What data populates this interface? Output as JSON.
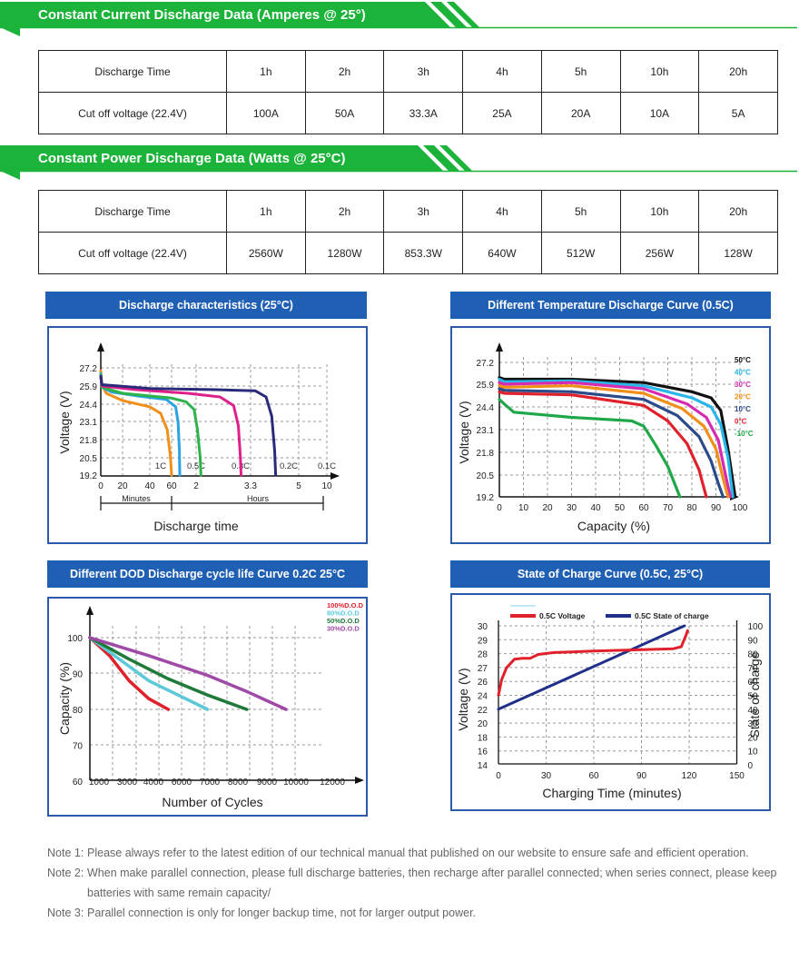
{
  "current_section": {
    "title": "Constant Current Discharge Data (Amperes @ 25°)",
    "header_label": "Discharge Time",
    "times": [
      "1h",
      "2h",
      "3h",
      "4h",
      "5h",
      "10h",
      "20h"
    ],
    "row_label": "Cut off voltage (22.4V)",
    "values": [
      "100A",
      "50A",
      "33.3A",
      "25A",
      "20A",
      "10A",
      "5A"
    ]
  },
  "power_section": {
    "title": "Constant Power Discharge Data (Watts @ 25°C)",
    "header_label": "Discharge Time",
    "times": [
      "1h",
      "2h",
      "3h",
      "4h",
      "5h",
      "10h",
      "20h"
    ],
    "row_label": "Cut off voltage (22.4V)",
    "values": [
      "2560W",
      "1280W",
      "853.3W",
      "640W",
      "512W",
      "256W",
      "128W"
    ]
  },
  "colors": {
    "green_bar": "#1cb33a",
    "blue_header": "#1f5fb4",
    "frame_border": "#2a5aa8",
    "c1": "#f0901a",
    "c05": "#2aa3e0",
    "c03": "#2db34a",
    "c02": "#e0208a",
    "c01": "#2a2a7a",
    "t50": "#111111",
    "t40": "#29b6e8",
    "t30": "#d62ab0",
    "t20": "#f0901a",
    "t10": "#2a4a8a",
    "t0": "#e0202a",
    "tm10": "#1ea84a",
    "d100": "#e0202a",
    "d80": "#5cc8d8",
    "d50": "#1f7a3a",
    "d30": "#a04aa8",
    "voltage_line": "#e0202a",
    "soc_line": "#1f2f8a"
  },
  "chart_data": [
    {
      "type": "line",
      "title": "Discharge characteristics (25°C)",
      "xlabel": "Discharge time",
      "ylabel": "Voltage (V)",
      "yticks": [
        "27.2",
        "25.9",
        "24.4",
        "23.1",
        "21.8",
        "20.5",
        "19.2"
      ],
      "xtick_minutes": [
        "0",
        "20",
        "40",
        "60"
      ],
      "xtick_hours": [
        "2",
        "3.3",
        "5",
        "10"
      ],
      "xrange_minutes_label": "Minutes",
      "xrange_hours_label": "Hours",
      "series": [
        {
          "name": "1C",
          "points": [
            [
              0,
              27.0
            ],
            [
              1,
              26.0
            ],
            [
              5,
              25.3
            ],
            [
              20,
              24.7
            ],
            [
              40,
              24.2
            ],
            [
              50,
              23.7
            ],
            [
              56,
              22.5
            ],
            [
              59,
              20.5
            ],
            [
              60,
              19.2
            ]
          ]
        },
        {
          "name": "0.5C",
          "points": [
            [
              0,
              26.8
            ],
            [
              1,
              25.8
            ],
            [
              10,
              25.4
            ],
            [
              30,
              25.1
            ],
            [
              55,
              24.8
            ],
            [
              70,
              24.2
            ],
            [
              76,
              23.0
            ],
            [
              79,
              21.0
            ],
            [
              80,
              19.2
            ]
          ]
        },
        {
          "name": "0.3C",
          "points": [
            [
              0,
              26.7
            ],
            [
              1,
              25.8
            ],
            [
              20,
              25.3
            ],
            [
              60,
              24.9
            ],
            [
              95,
              24.6
            ],
            [
              115,
              24.0
            ],
            [
              122,
              22.5
            ],
            [
              126,
              20.5
            ],
            [
              127,
              19.2
            ]
          ]
        },
        {
          "name": "0.2C",
          "points": [
            [
              0,
              26.6
            ],
            [
              1,
              25.9
            ],
            [
              30,
              25.6
            ],
            [
              100,
              25.3
            ],
            [
              155,
              25.0
            ],
            [
              175,
              24.3
            ],
            [
              182,
              22.8
            ],
            [
              185,
              20.5
            ],
            [
              186,
              19.2
            ]
          ]
        },
        {
          "name": "0.1C",
          "points": [
            [
              0,
              26.6
            ],
            [
              1,
              26.0
            ],
            [
              40,
              25.7
            ],
            [
              150,
              25.6
            ],
            [
              210,
              25.5
            ],
            [
              232,
              25.0
            ],
            [
              244,
              23.5
            ],
            [
              250,
              21.0
            ],
            [
              252,
              19.2
            ]
          ]
        }
      ]
    },
    {
      "type": "line",
      "title": "Different Temperature Discharge Curve (0.5C)",
      "xlabel": "Capacity (%)",
      "ylabel": "Voltage (V)",
      "yticks": [
        "27.2",
        "25.9",
        "24.4",
        "23.1",
        "21.8",
        "20.5",
        "19.2"
      ],
      "xticks": [
        "0",
        "10",
        "20",
        "30",
        "40",
        "50",
        "60",
        "70",
        "80",
        "90",
        "100"
      ],
      "series": [
        {
          "name": "50°C",
          "points": [
            [
              0,
              26.3
            ],
            [
              2,
              26.2
            ],
            [
              30,
              26.2
            ],
            [
              60,
              26.0
            ],
            [
              80,
              25.4
            ],
            [
              88,
              25.0
            ],
            [
              92,
              24.2
            ],
            [
              95,
              22.0
            ],
            [
              98,
              19.2
            ]
          ]
        },
        {
          "name": "40°C",
          "points": [
            [
              0,
              26.2
            ],
            [
              2,
              26.05
            ],
            [
              30,
              26.1
            ],
            [
              60,
              25.8
            ],
            [
              80,
              25.0
            ],
            [
              88,
              24.4
            ],
            [
              92,
              23.4
            ],
            [
              95,
              21.5
            ],
            [
              97,
              19.2
            ]
          ]
        },
        {
          "name": "30°C",
          "points": [
            [
              0,
              26.0
            ],
            [
              2,
              25.9
            ],
            [
              30,
              26.0
            ],
            [
              60,
              25.6
            ],
            [
              78,
              24.6
            ],
            [
              86,
              23.8
            ],
            [
              91,
              22.5
            ],
            [
              94,
              20.5
            ],
            [
              96,
              19.2
            ]
          ]
        },
        {
          "name": "20°C",
          "points": [
            [
              0,
              25.8
            ],
            [
              2,
              25.7
            ],
            [
              30,
              25.8
            ],
            [
              60,
              25.3
            ],
            [
              76,
              24.3
            ],
            [
              85,
              23.3
            ],
            [
              90,
              22.0
            ],
            [
              93,
              20.3
            ],
            [
              95,
              19.2
            ]
          ]
        },
        {
          "name": "10°C",
          "points": [
            [
              0,
              25.6
            ],
            [
              2,
              25.5
            ],
            [
              30,
              25.4
            ],
            [
              60,
              24.9
            ],
            [
              74,
              23.9
            ],
            [
              83,
              22.7
            ],
            [
              88,
              21.3
            ],
            [
              91,
              20.0
            ],
            [
              93,
              19.2
            ]
          ]
        },
        {
          "name": "0°C",
          "points": [
            [
              0,
              25.4
            ],
            [
              2,
              25.3
            ],
            [
              30,
              25.2
            ],
            [
              60,
              24.5
            ],
            [
              70,
              23.6
            ],
            [
              78,
              22.3
            ],
            [
              83,
              20.8
            ],
            [
              86,
              19.2
            ]
          ]
        },
        {
          "name": "-10°C",
          "points": [
            [
              0,
              24.9
            ],
            [
              2,
              24.6
            ],
            [
              6,
              24.1
            ],
            [
              30,
              23.8
            ],
            [
              55,
              23.6
            ],
            [
              60,
              23.3
            ],
            [
              65,
              22.2
            ],
            [
              70,
              21.0
            ],
            [
              75,
              19.2
            ]
          ]
        }
      ]
    },
    {
      "type": "line",
      "title": "Different DOD Discharge cycle life Curve 0.2C 25°C",
      "xlabel": "Number of Cycles",
      "ylabel": "Capacity (%)",
      "yticks": [
        "100",
        "90",
        "80",
        "70",
        "60"
      ],
      "xticks": [
        "1000",
        "3000",
        "4000",
        "6000",
        "7000",
        "8000",
        "9000",
        "10000",
        "12000"
      ],
      "series": [
        {
          "name": "100%D.O.D",
          "points": [
            [
              0,
              100
            ],
            [
              1000,
              95
            ],
            [
              2000,
              88
            ],
            [
              3000,
              83
            ],
            [
              4000,
              80
            ]
          ]
        },
        {
          "name": "80%D.O.D",
          "points": [
            [
              0,
              100
            ],
            [
              1500,
              94
            ],
            [
              3000,
              88
            ],
            [
              4500,
              84
            ],
            [
              6000,
              80
            ]
          ]
        },
        {
          "name": "50%D.O.D",
          "points": [
            [
              0,
              100
            ],
            [
              2000,
              94
            ],
            [
              4000,
              88.5
            ],
            [
              6000,
              84
            ],
            [
              8000,
              80
            ]
          ]
        },
        {
          "name": "30%D.O.D",
          "points": [
            [
              0,
              100
            ],
            [
              3000,
              95
            ],
            [
              6000,
              89.5
            ],
            [
              8000,
              85
            ],
            [
              10000,
              80
            ]
          ]
        }
      ]
    },
    {
      "type": "line",
      "title": "State of Charge Curve (0.5C, 25°C)",
      "xlabel": "Charging Time (minutes)",
      "ylabel": "Voltage (V)",
      "y2label": "State of charge",
      "yticks": [
        "30",
        "29",
        "28",
        "27",
        "26",
        "24",
        "22",
        "20",
        "18",
        "16",
        "14"
      ],
      "y2ticks": [
        "100",
        "90",
        "80",
        "70",
        "60",
        "50",
        "40",
        "30",
        "20",
        "10",
        "0"
      ],
      "xticks": [
        "0",
        "30",
        "60",
        "90",
        "120",
        "150"
      ],
      "series": [
        {
          "name": "0.5C Voltage",
          "axis": "left",
          "points": [
            [
              0,
              22
            ],
            [
              2,
              24
            ],
            [
              5,
              25.5
            ],
            [
              10,
              26.5
            ],
            [
              15,
              26.6
            ],
            [
              20,
              26.6
            ],
            [
              25,
              27.0
            ],
            [
              35,
              27.2
            ],
            [
              60,
              27.35
            ],
            [
              90,
              27.5
            ],
            [
              110,
              27.6
            ],
            [
              115,
              27.8
            ],
            [
              118,
              29.0
            ],
            [
              119,
              29.5
            ]
          ]
        },
        {
          "name": "0.5C State of charge",
          "axis": "right",
          "points": [
            [
              0,
              40
            ],
            [
              117,
              100
            ]
          ]
        }
      ]
    }
  ],
  "notes": [
    {
      "label": "Note 1:",
      "text": "Please always refer to the latest edition of our technical manual that published on our website to ensure safe and efficient operation."
    },
    {
      "label": "Note 2:",
      "text": "When make parallel connection, please full discharge batteries, then recharge after parallel connected; when series connect, please keep batteries with same remain capacity/"
    },
    {
      "label": "Note 3:",
      "text": "Parallel connection is only for longer backup time, not for larger output power."
    }
  ]
}
